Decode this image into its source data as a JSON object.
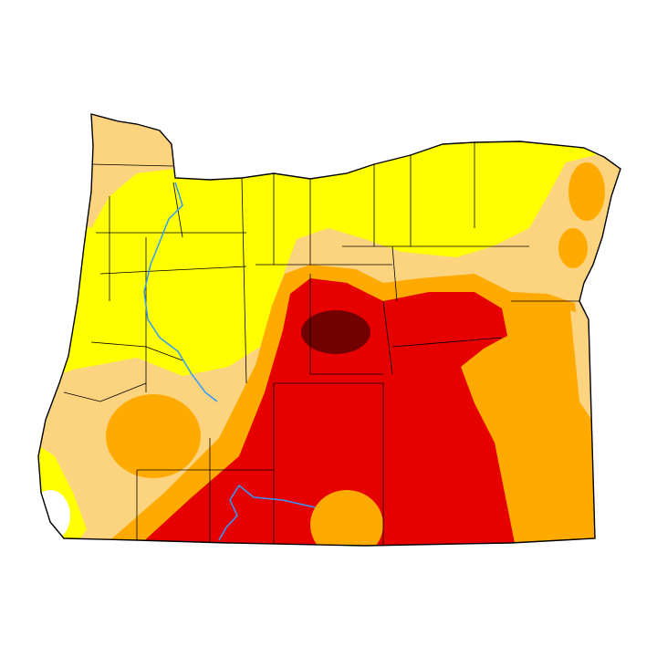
{
  "map": {
    "region": "Oregon",
    "categories": [
      {
        "id": "D0",
        "color": "#ffff00"
      },
      {
        "id": "D1",
        "color": "#fcd37f"
      },
      {
        "id": "D2",
        "color": "#ffaa00"
      },
      {
        "id": "D3",
        "color": "#e60000"
      },
      {
        "id": "D4",
        "color": "#730000"
      }
    ],
    "none_color": "#ffffff",
    "river_color": "#3399ff",
    "border_color": "#000000"
  }
}
